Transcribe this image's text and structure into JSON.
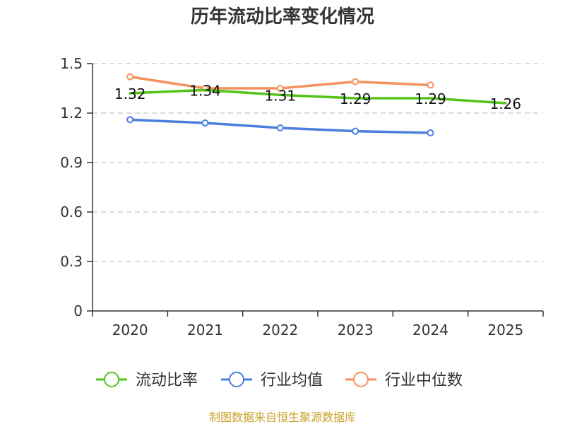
{
  "chart_data": {
    "type": "line",
    "title": "历年流动比率变化情况",
    "x": [
      "2020",
      "2021",
      "2022",
      "2023",
      "2024",
      "2025"
    ],
    "ylim": [
      0,
      1.5
    ],
    "yticks": [
      "0",
      "0.3",
      "0.6",
      "0.9",
      "1.2",
      "1.5"
    ],
    "ytick_values": [
      0,
      0.3,
      0.6,
      0.9,
      1.2,
      1.5
    ],
    "grid": true,
    "legend_position": "bottom",
    "series": [
      {
        "name": "流动比率",
        "color": "#52c41a",
        "values": [
          1.32,
          1.34,
          1.31,
          1.29,
          1.29,
          1.26
        ],
        "labels": [
          "1.32",
          "1.34",
          "1.31",
          "1.29",
          "1.29",
          "1.26"
        ],
        "markers": false
      },
      {
        "name": "行业均值",
        "color": "#4a7fdc",
        "values": [
          1.16,
          1.14,
          1.11,
          1.09,
          1.08,
          null
        ],
        "markers": true
      },
      {
        "name": "行业中位数",
        "color": "#f5925e",
        "values": [
          1.42,
          1.35,
          1.35,
          1.39,
          1.37,
          null
        ],
        "markers": true
      }
    ]
  },
  "footer": {
    "source": "制图数据来自恒生聚源数据库"
  }
}
